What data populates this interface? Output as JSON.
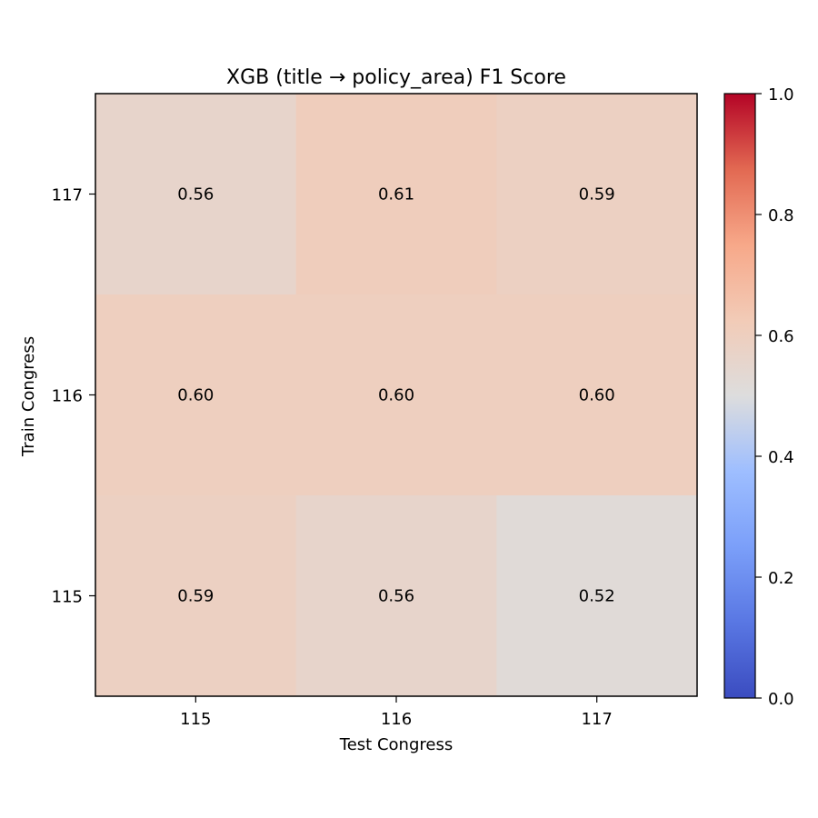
{
  "chart_data": {
    "type": "heatmap",
    "title": "XGB (title → policy_area) F1 Score",
    "xlabel": "Test Congress",
    "ylabel": "Train Congress",
    "x_categories": [
      "115",
      "116",
      "117"
    ],
    "y_categories": [
      "117",
      "116",
      "115"
    ],
    "values": [
      [
        0.56,
        0.61,
        0.59
      ],
      [
        0.6,
        0.6,
        0.6
      ],
      [
        0.59,
        0.56,
        0.52
      ]
    ],
    "value_labels": [
      [
        "0.56",
        "0.61",
        "0.59"
      ],
      [
        "0.60",
        "0.60",
        "0.60"
      ],
      [
        "0.59",
        "0.56",
        "0.52"
      ]
    ],
    "colorbar": {
      "colormap": "coolwarm",
      "range": [
        0.0,
        1.0
      ],
      "ticks": [
        "0.0",
        "0.2",
        "0.4",
        "0.6",
        "0.8",
        "1.0"
      ]
    },
    "grid": false
  }
}
